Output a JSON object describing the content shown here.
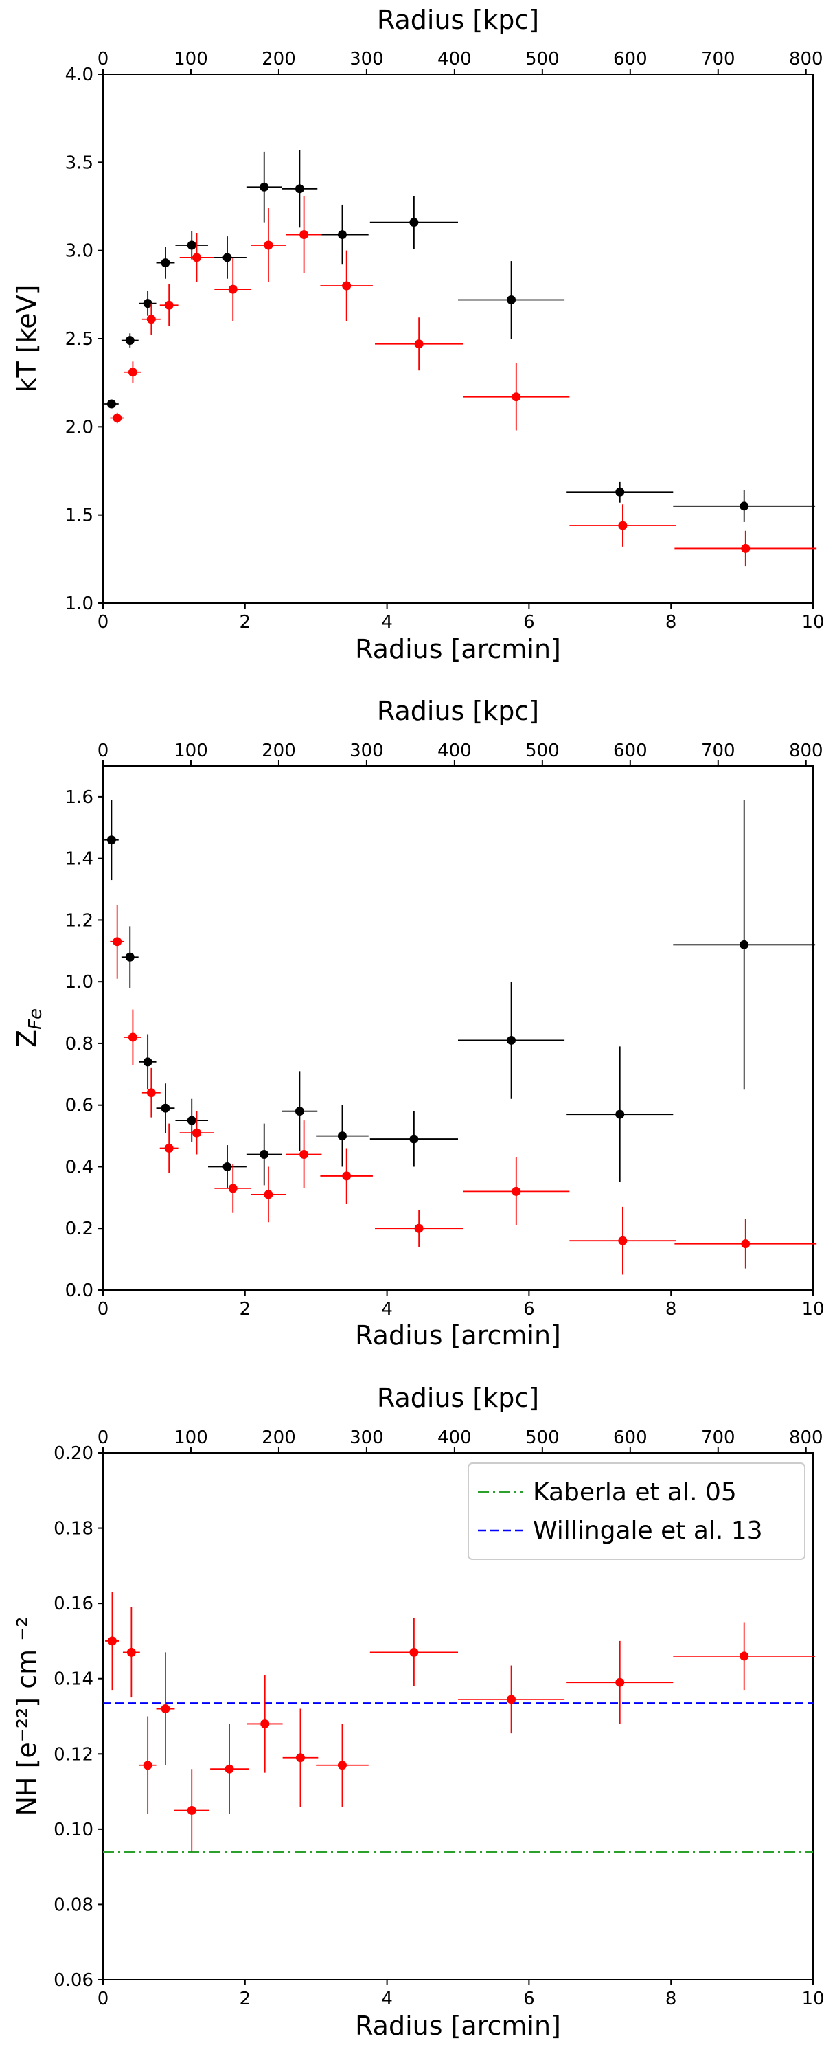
{
  "chart_data": [
    {
      "type": "scatter",
      "xlabel": "Radius [arcmin]",
      "x2label": "Radius [kpc]",
      "ylabel": "kT [keV]",
      "xlim": [
        0,
        10
      ],
      "x2lim": [
        0,
        808
      ],
      "ylim": [
        1.0,
        4.0
      ],
      "xticks": [
        0,
        2,
        4,
        6,
        8,
        10
      ],
      "x2ticks": [
        0,
        100,
        200,
        300,
        400,
        500,
        600,
        700,
        800
      ],
      "yticks": [
        "1.0",
        "1.5",
        "2.0",
        "2.5",
        "3.0",
        "3.5",
        "4.0"
      ],
      "grid": false,
      "series": [
        {
          "color": "#000000",
          "points": [
            {
              "x": 0.12,
              "xerr": 0.1,
              "y": 2.13,
              "yerr": 0.02
            },
            {
              "x": 0.38,
              "xerr": 0.12,
              "y": 2.49,
              "yerr": 0.04
            },
            {
              "x": 0.63,
              "xerr": 0.12,
              "y": 2.7,
              "yerr": 0.07
            },
            {
              "x": 0.88,
              "xerr": 0.13,
              "y": 2.93,
              "yerr": 0.09
            },
            {
              "x": 1.25,
              "xerr": 0.23,
              "y": 3.03,
              "yerr": 0.08
            },
            {
              "x": 1.75,
              "xerr": 0.27,
              "y": 2.96,
              "yerr": 0.12
            },
            {
              "x": 2.27,
              "xerr": 0.25,
              "y": 3.36,
              "yerr": 0.2
            },
            {
              "x": 2.77,
              "xerr": 0.25,
              "y": 3.35,
              "yerr": 0.22
            },
            {
              "x": 3.37,
              "xerr": 0.37,
              "y": 3.09,
              "yerr": 0.17
            },
            {
              "x": 4.38,
              "xerr": 0.62,
              "y": 3.16,
              "yerr": 0.15
            },
            {
              "x": 5.75,
              "xerr": 0.75,
              "y": 2.72,
              "yerr": 0.22
            },
            {
              "x": 7.28,
              "xerr": 0.75,
              "y": 1.63,
              "yerr": 0.06
            },
            {
              "x": 9.03,
              "xerr": 1.0,
              "y": 1.55,
              "yerr": 0.09
            }
          ]
        },
        {
          "color": "#ff0000",
          "points": [
            {
              "x": 0.2,
              "xerr": 0.1,
              "y": 2.05,
              "yerr": 0.03
            },
            {
              "x": 0.42,
              "xerr": 0.12,
              "y": 2.31,
              "yerr": 0.06
            },
            {
              "x": 0.68,
              "xerr": 0.13,
              "y": 2.61,
              "yerr": 0.09
            },
            {
              "x": 0.93,
              "xerr": 0.13,
              "y": 2.69,
              "yerr": 0.12
            },
            {
              "x": 1.32,
              "xerr": 0.24,
              "y": 2.96,
              "yerr": 0.14
            },
            {
              "x": 1.83,
              "xerr": 0.26,
              "y": 2.78,
              "yerr": 0.18
            },
            {
              "x": 2.33,
              "xerr": 0.25,
              "y": 3.03,
              "yerr": 0.21
            },
            {
              "x": 2.83,
              "xerr": 0.25,
              "y": 3.09,
              "yerr": 0.22
            },
            {
              "x": 3.43,
              "xerr": 0.37,
              "y": 2.8,
              "yerr": 0.2
            },
            {
              "x": 4.45,
              "xerr": 0.62,
              "y": 2.47,
              "yerr": 0.15
            },
            {
              "x": 5.82,
              "xerr": 0.75,
              "y": 2.17,
              "yerr": 0.19
            },
            {
              "x": 7.32,
              "xerr": 0.75,
              "y": 1.44,
              "yerr": 0.12
            },
            {
              "x": 9.05,
              "xerr": 1.0,
              "y": 1.31,
              "yerr": 0.1
            }
          ]
        }
      ]
    },
    {
      "type": "scatter",
      "xlabel": "Radius [arcmin]",
      "x2label": "Radius [kpc]",
      "ylabel": "Z_Fe",
      "xlim": [
        0,
        10
      ],
      "x2lim": [
        0,
        808
      ],
      "ylim": [
        0.0,
        1.7
      ],
      "xticks": [
        0,
        2,
        4,
        6,
        8,
        10
      ],
      "x2ticks": [
        0,
        100,
        200,
        300,
        400,
        500,
        600,
        700,
        800
      ],
      "yticks": [
        "0.0",
        "0.2",
        "0.4",
        "0.6",
        "0.8",
        "1.0",
        "1.2",
        "1.4",
        "1.6"
      ],
      "grid": false,
      "series": [
        {
          "color": "#000000",
          "points": [
            {
              "x": 0.12,
              "xerr": 0.1,
              "y": 1.46,
              "yerr": 0.13
            },
            {
              "x": 0.38,
              "xerr": 0.12,
              "y": 1.08,
              "yerr": 0.1
            },
            {
              "x": 0.63,
              "xerr": 0.12,
              "y": 0.74,
              "yerr": 0.09
            },
            {
              "x": 0.88,
              "xerr": 0.13,
              "y": 0.59,
              "yerr": 0.08
            },
            {
              "x": 1.25,
              "xerr": 0.23,
              "y": 0.55,
              "yerr": 0.07
            },
            {
              "x": 1.75,
              "xerr": 0.27,
              "y": 0.4,
              "yerr": 0.07
            },
            {
              "x": 2.27,
              "xerr": 0.25,
              "y": 0.44,
              "yerr": 0.1
            },
            {
              "x": 2.77,
              "xerr": 0.25,
              "y": 0.58,
              "yerr": 0.13
            },
            {
              "x": 3.37,
              "xerr": 0.37,
              "y": 0.5,
              "yerr": 0.1
            },
            {
              "x": 4.38,
              "xerr": 0.62,
              "y": 0.49,
              "yerr": 0.09
            },
            {
              "x": 5.75,
              "xerr": 0.75,
              "y": 0.81,
              "yerr": 0.19
            },
            {
              "x": 7.28,
              "xerr": 0.75,
              "y": 0.57,
              "yerr": 0.22
            },
            {
              "x": 9.03,
              "xerr": 1.0,
              "y": 1.12,
              "yerr": 0.47
            }
          ]
        },
        {
          "color": "#ff0000",
          "points": [
            {
              "x": 0.2,
              "xerr": 0.1,
              "y": 1.13,
              "yerr": 0.12
            },
            {
              "x": 0.42,
              "xerr": 0.12,
              "y": 0.82,
              "yerr": 0.09
            },
            {
              "x": 0.68,
              "xerr": 0.13,
              "y": 0.64,
              "yerr": 0.08
            },
            {
              "x": 0.93,
              "xerr": 0.13,
              "y": 0.46,
              "yerr": 0.08
            },
            {
              "x": 1.32,
              "xerr": 0.24,
              "y": 0.51,
              "yerr": 0.07
            },
            {
              "x": 1.83,
              "xerr": 0.26,
              "y": 0.33,
              "yerr": 0.08
            },
            {
              "x": 2.33,
              "xerr": 0.25,
              "y": 0.31,
              "yerr": 0.09
            },
            {
              "x": 2.83,
              "xerr": 0.25,
              "y": 0.44,
              "yerr": 0.11
            },
            {
              "x": 3.43,
              "xerr": 0.37,
              "y": 0.37,
              "yerr": 0.09
            },
            {
              "x": 4.45,
              "xerr": 0.62,
              "y": 0.2,
              "yerr": 0.06
            },
            {
              "x": 5.82,
              "xerr": 0.75,
              "y": 0.32,
              "yerr": 0.11
            },
            {
              "x": 7.32,
              "xerr": 0.75,
              "y": 0.16,
              "yerr": 0.11
            },
            {
              "x": 9.05,
              "xerr": 1.0,
              "y": 0.15,
              "yerr": 0.08
            }
          ]
        }
      ]
    },
    {
      "type": "scatter",
      "xlabel": "Radius [arcmin]",
      "x2label": "Radius [kpc]",
      "ylabel": "NH [e⁻²²] cm ⁻²",
      "xlim": [
        0,
        10
      ],
      "x2lim": [
        0,
        808
      ],
      "ylim": [
        0.06,
        0.2
      ],
      "xticks": [
        0,
        2,
        4,
        6,
        8,
        10
      ],
      "x2ticks": [
        0,
        100,
        200,
        300,
        400,
        500,
        600,
        700,
        800
      ],
      "yticks": [
        "0.06",
        "0.08",
        "0.10",
        "0.12",
        "0.14",
        "0.16",
        "0.18",
        "0.20"
      ],
      "grid": false,
      "legend_position": "top-right",
      "reference_lines": [
        {
          "name": "Kaberla et al. 05",
          "y": 0.094,
          "color": "#2ca02c",
          "style": "dashdot"
        },
        {
          "name": "Willingale et al. 13",
          "y": 0.1335,
          "color": "#0000ff",
          "style": "dashed"
        }
      ],
      "series": [
        {
          "color": "#ff0000",
          "points": [
            {
              "x": 0.13,
              "xerr": 0.1,
              "y": 0.15,
              "yerr": 0.013
            },
            {
              "x": 0.4,
              "xerr": 0.12,
              "y": 0.147,
              "yerr": 0.012
            },
            {
              "x": 0.63,
              "xerr": 0.12,
              "y": 0.117,
              "yerr": 0.013
            },
            {
              "x": 0.88,
              "xerr": 0.13,
              "y": 0.132,
              "yerr": 0.015
            },
            {
              "x": 1.25,
              "xerr": 0.25,
              "y": 0.105,
              "yerr": 0.011
            },
            {
              "x": 1.78,
              "xerr": 0.27,
              "y": 0.116,
              "yerr": 0.012
            },
            {
              "x": 2.28,
              "xerr": 0.25,
              "y": 0.128,
              "yerr": 0.013
            },
            {
              "x": 2.78,
              "xerr": 0.25,
              "y": 0.119,
              "yerr": 0.013
            },
            {
              "x": 3.37,
              "xerr": 0.37,
              "y": 0.117,
              "yerr": 0.011
            },
            {
              "x": 4.38,
              "xerr": 0.62,
              "y": 0.147,
              "yerr": 0.009
            },
            {
              "x": 5.75,
              "xerr": 0.75,
              "y": 0.1345,
              "yerr": 0.009
            },
            {
              "x": 7.28,
              "xerr": 0.75,
              "y": 0.139,
              "yerr": 0.011
            },
            {
              "x": 9.03,
              "xerr": 1.0,
              "y": 0.146,
              "yerr": 0.009
            }
          ]
        }
      ]
    }
  ]
}
